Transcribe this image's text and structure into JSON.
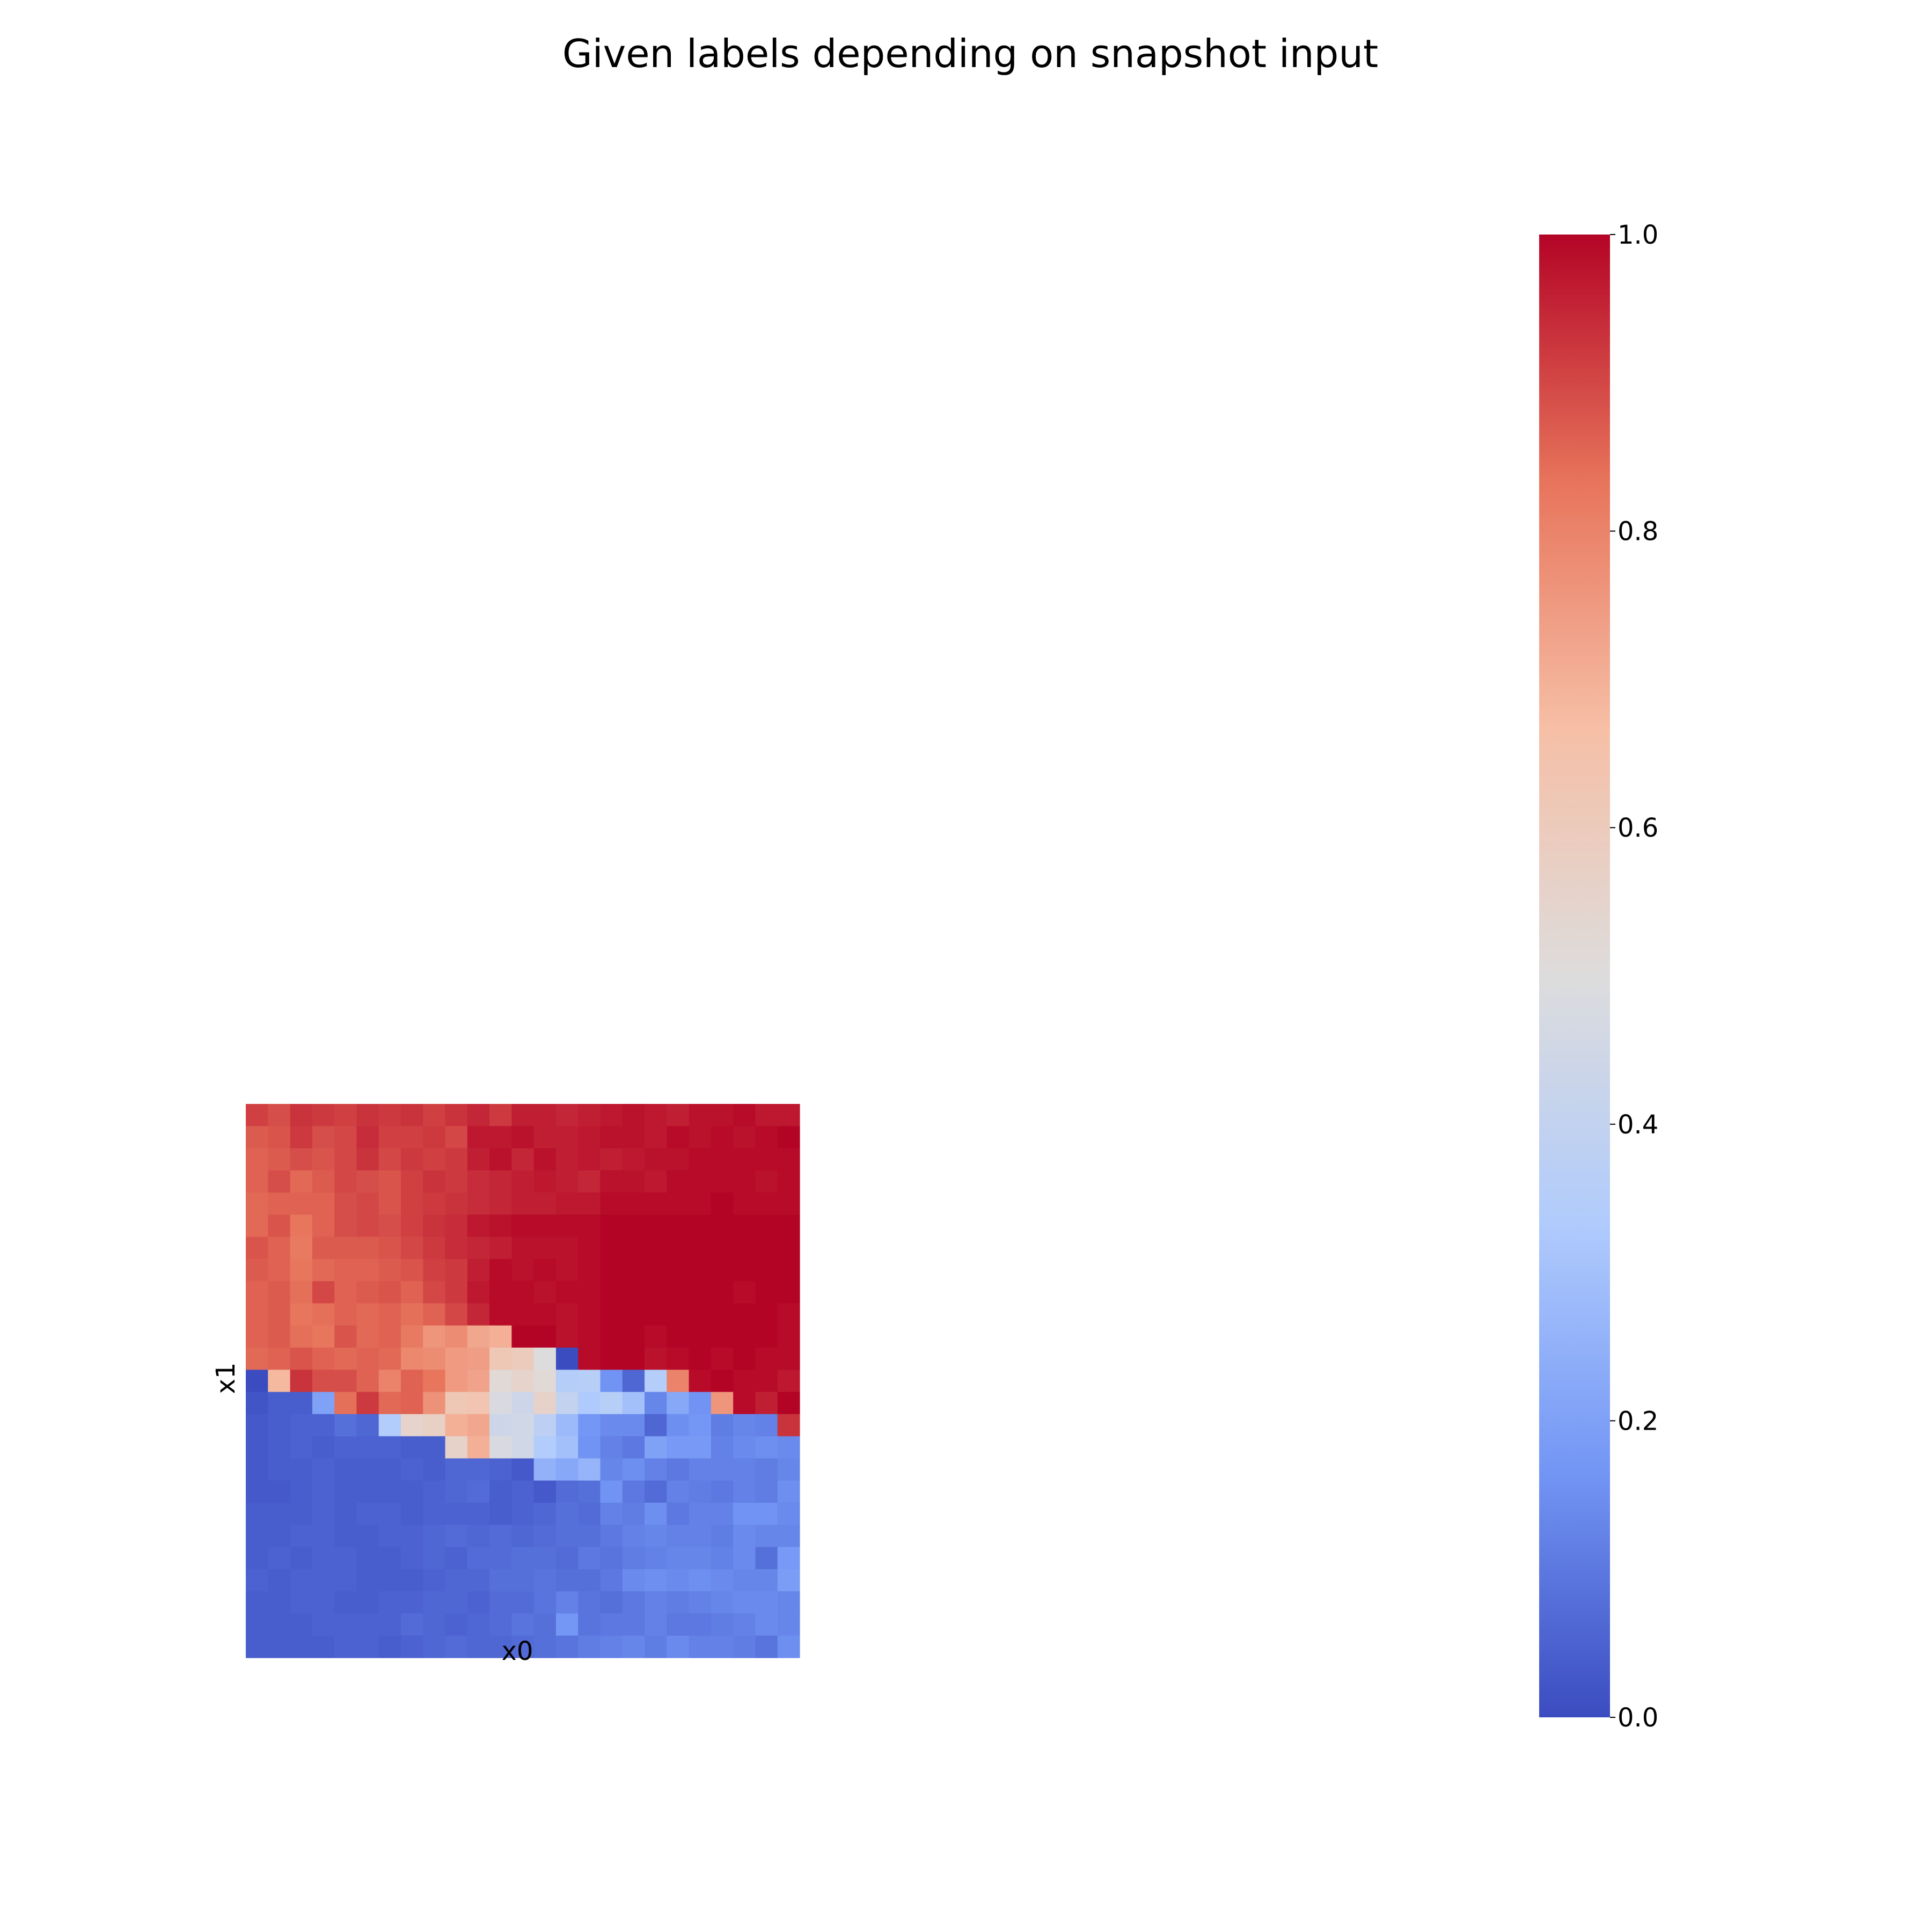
{
  "chart_data": {
    "type": "heatmap",
    "title": "Given labels depending on snapshot input",
    "xlabel": "x0",
    "ylabel": "x1",
    "colormap": "coolwarm",
    "colormap_stops": [
      "#3b4cc0",
      "#7396f5",
      "#b0cbfc",
      "#dddcdc",
      "#f6bfa6",
      "#e7745b",
      "#b40426"
    ],
    "colorbar": {
      "vmin": 0.0,
      "vmax": 1.0,
      "ticks": [
        0.0,
        0.2,
        0.4,
        0.6,
        0.8,
        1.0
      ],
      "tick_labels": [
        "0.0",
        "0.2",
        "0.4",
        "0.6",
        "0.8",
        "1.0"
      ]
    },
    "grid_rows": 25,
    "grid_cols": 25,
    "values": [
      [
        0.91,
        0.89,
        0.93,
        0.92,
        0.91,
        0.93,
        0.92,
        0.93,
        0.91,
        0.93,
        0.95,
        0.92,
        0.96,
        0.96,
        0.95,
        0.96,
        0.97,
        0.98,
        0.97,
        0.96,
        0.98,
        0.98,
        0.99,
        0.97,
        0.97
      ],
      [
        0.87,
        0.88,
        0.92,
        0.89,
        0.9,
        0.94,
        0.91,
        0.91,
        0.92,
        0.9,
        0.97,
        0.97,
        0.98,
        0.96,
        0.96,
        0.97,
        0.98,
        0.98,
        0.97,
        0.99,
        0.98,
        0.99,
        0.98,
        0.99,
        1.0
      ],
      [
        0.86,
        0.87,
        0.89,
        0.88,
        0.9,
        0.93,
        0.9,
        0.92,
        0.91,
        0.92,
        0.96,
        0.98,
        0.95,
        0.98,
        0.96,
        0.97,
        0.96,
        0.97,
        0.98,
        0.98,
        0.99,
        0.99,
        0.99,
        0.99,
        0.99
      ],
      [
        0.86,
        0.89,
        0.85,
        0.87,
        0.9,
        0.89,
        0.88,
        0.91,
        0.93,
        0.92,
        0.94,
        0.95,
        0.96,
        0.97,
        0.96,
        0.95,
        0.98,
        0.98,
        0.97,
        0.99,
        0.99,
        0.99,
        0.99,
        0.98,
        0.99
      ],
      [
        0.85,
        0.86,
        0.86,
        0.86,
        0.89,
        0.9,
        0.88,
        0.91,
        0.92,
        0.93,
        0.94,
        0.95,
        0.96,
        0.96,
        0.97,
        0.97,
        0.99,
        0.99,
        0.99,
        0.99,
        0.99,
        1.0,
        0.99,
        0.99,
        0.99
      ],
      [
        0.85,
        0.88,
        0.83,
        0.86,
        0.89,
        0.9,
        0.89,
        0.91,
        0.93,
        0.94,
        0.97,
        0.98,
        0.99,
        0.99,
        0.99,
        0.99,
        1.0,
        1.0,
        1.0,
        1.0,
        1.0,
        1.0,
        1.0,
        1.0,
        1.0
      ],
      [
        0.88,
        0.86,
        0.82,
        0.87,
        0.87,
        0.87,
        0.88,
        0.9,
        0.92,
        0.94,
        0.95,
        0.96,
        0.98,
        0.98,
        0.98,
        0.99,
        1.0,
        1.0,
        1.0,
        1.0,
        1.0,
        1.0,
        1.0,
        1.0,
        1.0
      ],
      [
        0.87,
        0.86,
        0.83,
        0.85,
        0.86,
        0.86,
        0.87,
        0.88,
        0.91,
        0.92,
        0.96,
        0.99,
        0.98,
        0.99,
        0.98,
        0.99,
        1.0,
        1.0,
        1.0,
        1.0,
        1.0,
        1.0,
        1.0,
        1.0,
        1.0
      ],
      [
        0.86,
        0.87,
        0.84,
        0.9,
        0.86,
        0.87,
        0.88,
        0.86,
        0.9,
        0.92,
        0.97,
        0.99,
        0.99,
        0.98,
        0.99,
        0.99,
        1.0,
        1.0,
        1.0,
        1.0,
        1.0,
        1.0,
        0.99,
        1.0,
        1.0
      ],
      [
        0.86,
        0.87,
        0.83,
        0.84,
        0.86,
        0.85,
        0.86,
        0.84,
        0.86,
        0.9,
        0.95,
        0.99,
        0.99,
        0.99,
        0.98,
        0.99,
        1.0,
        1.0,
        1.0,
        1.0,
        1.0,
        1.0,
        1.0,
        1.0,
        0.99
      ],
      [
        0.86,
        0.87,
        0.84,
        0.83,
        0.88,
        0.85,
        0.86,
        0.82,
        0.76,
        0.78,
        0.72,
        0.7,
        1.0,
        1.0,
        0.98,
        0.99,
        1.0,
        1.0,
        0.99,
        1.0,
        1.0,
        1.0,
        1.0,
        1.0,
        0.99
      ],
      [
        0.85,
        0.86,
        0.88,
        0.86,
        0.85,
        0.86,
        0.85,
        0.79,
        0.78,
        0.75,
        0.74,
        0.62,
        0.6,
        0.5,
        0.0,
        0.99,
        1.0,
        1.0,
        0.98,
        0.99,
        1.0,
        0.99,
        1.0,
        0.99,
        0.99
      ],
      [
        0.0,
        0.68,
        0.93,
        0.89,
        0.89,
        0.86,
        0.8,
        0.86,
        0.83,
        0.75,
        0.73,
        0.52,
        0.55,
        0.52,
        0.35,
        0.36,
        0.16,
        0.06,
        0.35,
        0.8,
        0.99,
        1.0,
        0.99,
        0.99,
        0.97
      ],
      [
        0.02,
        0.04,
        0.04,
        0.2,
        0.84,
        0.92,
        0.85,
        0.86,
        0.77,
        0.62,
        0.63,
        0.48,
        0.44,
        0.56,
        0.4,
        0.33,
        0.36,
        0.3,
        0.13,
        0.22,
        0.16,
        0.76,
        0.99,
        0.96,
        1.0
      ],
      [
        0.03,
        0.04,
        0.05,
        0.05,
        0.08,
        0.06,
        0.34,
        0.55,
        0.57,
        0.7,
        0.72,
        0.44,
        0.45,
        0.38,
        0.28,
        0.17,
        0.14,
        0.14,
        0.06,
        0.15,
        0.17,
        0.11,
        0.13,
        0.12,
        0.93
      ],
      [
        0.03,
        0.04,
        0.05,
        0.04,
        0.05,
        0.05,
        0.05,
        0.04,
        0.04,
        0.56,
        0.7,
        0.48,
        0.45,
        0.34,
        0.3,
        0.16,
        0.12,
        0.1,
        0.2,
        0.18,
        0.18,
        0.12,
        0.14,
        0.15,
        0.14
      ],
      [
        0.03,
        0.04,
        0.04,
        0.05,
        0.04,
        0.04,
        0.04,
        0.05,
        0.04,
        0.06,
        0.06,
        0.05,
        0.03,
        0.25,
        0.22,
        0.26,
        0.13,
        0.15,
        0.12,
        0.1,
        0.12,
        0.12,
        0.12,
        0.11,
        0.13
      ],
      [
        0.03,
        0.03,
        0.04,
        0.05,
        0.04,
        0.04,
        0.04,
        0.04,
        0.05,
        0.06,
        0.07,
        0.04,
        0.05,
        0.03,
        0.07,
        0.08,
        0.16,
        0.1,
        0.07,
        0.12,
        0.11,
        0.1,
        0.12,
        0.11,
        0.15
      ],
      [
        0.04,
        0.04,
        0.04,
        0.05,
        0.04,
        0.05,
        0.05,
        0.04,
        0.05,
        0.05,
        0.05,
        0.04,
        0.05,
        0.06,
        0.08,
        0.07,
        0.12,
        0.11,
        0.15,
        0.1,
        0.12,
        0.12,
        0.16,
        0.16,
        0.14
      ],
      [
        0.04,
        0.04,
        0.05,
        0.05,
        0.04,
        0.04,
        0.05,
        0.05,
        0.06,
        0.07,
        0.06,
        0.07,
        0.06,
        0.07,
        0.08,
        0.08,
        0.1,
        0.12,
        0.13,
        0.12,
        0.12,
        0.11,
        0.14,
        0.13,
        0.13
      ],
      [
        0.04,
        0.05,
        0.04,
        0.05,
        0.05,
        0.04,
        0.04,
        0.05,
        0.06,
        0.05,
        0.07,
        0.07,
        0.08,
        0.08,
        0.07,
        0.1,
        0.09,
        0.11,
        0.12,
        0.13,
        0.13,
        0.12,
        0.14,
        0.08,
        0.18
      ],
      [
        0.05,
        0.04,
        0.05,
        0.05,
        0.05,
        0.04,
        0.04,
        0.04,
        0.05,
        0.06,
        0.06,
        0.08,
        0.08,
        0.09,
        0.08,
        0.08,
        0.1,
        0.14,
        0.15,
        0.14,
        0.15,
        0.14,
        0.13,
        0.13,
        0.19
      ],
      [
        0.04,
        0.04,
        0.05,
        0.05,
        0.04,
        0.04,
        0.05,
        0.05,
        0.06,
        0.06,
        0.05,
        0.07,
        0.07,
        0.09,
        0.12,
        0.09,
        0.08,
        0.1,
        0.12,
        0.11,
        0.12,
        0.13,
        0.14,
        0.14,
        0.13
      ],
      [
        0.04,
        0.04,
        0.04,
        0.05,
        0.05,
        0.05,
        0.05,
        0.07,
        0.06,
        0.05,
        0.06,
        0.07,
        0.09,
        0.08,
        0.17,
        0.09,
        0.1,
        0.1,
        0.12,
        0.1,
        0.1,
        0.11,
        0.12,
        0.14,
        0.13
      ],
      [
        0.04,
        0.04,
        0.04,
        0.04,
        0.05,
        0.05,
        0.04,
        0.05,
        0.06,
        0.07,
        0.06,
        0.06,
        0.07,
        0.08,
        0.09,
        0.11,
        0.12,
        0.13,
        0.11,
        0.14,
        0.12,
        0.12,
        0.11,
        0.09,
        0.15
      ]
    ]
  }
}
